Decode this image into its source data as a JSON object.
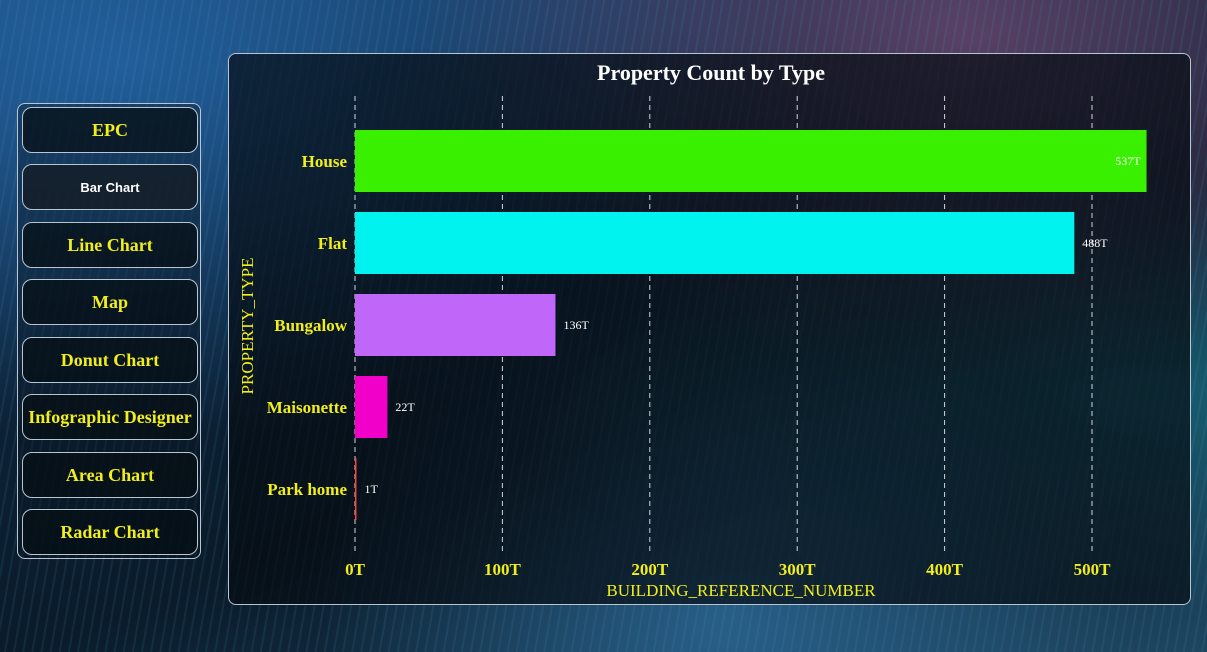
{
  "sidebar": {
    "items": [
      {
        "label": "EPC"
      },
      {
        "label": "Bar Chart"
      },
      {
        "label": "Line Chart"
      },
      {
        "label": "Map"
      },
      {
        "label": "Donut Chart"
      },
      {
        "label": "Infographic Designer"
      },
      {
        "label": "Area Chart"
      },
      {
        "label": "Radar Chart"
      }
    ],
    "active_index": 1
  },
  "colors": {
    "label_yellow": "#f2ee1c",
    "house": "#39f000",
    "flat": "#00f3ee",
    "bungalow": "#c066f8",
    "maisonette": "#f000c8",
    "park_home": "#ff4040"
  },
  "chart_data": {
    "type": "bar",
    "orientation": "horizontal",
    "title": "Property Count by Type",
    "xlabel": "BUILDING_REFERENCE_NUMBER",
    "ylabel": "PROPERTY_TYPE",
    "categories": [
      "House",
      "Flat",
      "Bungalow",
      "Maisonette",
      "Park home"
    ],
    "values": [
      537,
      488,
      136,
      22,
      1
    ],
    "value_labels": [
      "537T",
      "488T",
      "136T",
      "22T",
      "1T"
    ],
    "xlim": [
      0,
      540
    ],
    "xticks": [
      0,
      100,
      200,
      300,
      400,
      500
    ],
    "xtick_labels": [
      "0T",
      "100T",
      "200T",
      "300T",
      "400T",
      "500T"
    ],
    "grid": true,
    "legend": "none"
  }
}
